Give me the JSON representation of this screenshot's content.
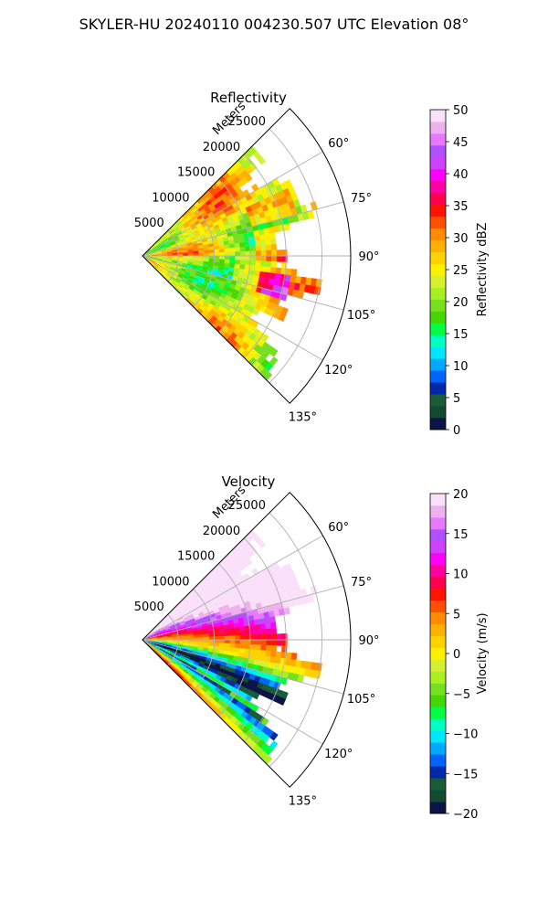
{
  "figure_title": "SKYLER-HU  20240110  004230.507 UTC Elevation 08°",
  "chart_data": [
    {
      "type": "heatmap",
      "projection": "polar-sector",
      "title": "Reflectivity",
      "r_label": "Meters",
      "r_ticks": [
        5000,
        10000,
        15000,
        20000,
        25000
      ],
      "r_tick_labels": [
        "5000",
        "10000",
        "15000",
        "20000",
        "25000"
      ],
      "r_max": 29000,
      "theta_range_deg": [
        45,
        135
      ],
      "theta_ticks": [
        60,
        75,
        90,
        105,
        120,
        135
      ],
      "theta_tick_labels": [
        "60°",
        "75°",
        "90°",
        "105°",
        "120°",
        "135°"
      ],
      "grid": true,
      "colorbar": {
        "label": "Reflectivity dBZ",
        "min": 0,
        "max": 50,
        "ticks": [
          0,
          5,
          10,
          15,
          20,
          25,
          30,
          35,
          40,
          45,
          50
        ],
        "tick_labels": [
          "0",
          "5",
          "10",
          "15",
          "20",
          "25",
          "30",
          "35",
          "40",
          "45",
          "50"
        ],
        "colors": [
          "#0a1445",
          "#134a33",
          "#1a5c3a",
          "#0028a8",
          "#0064ff",
          "#00a8ff",
          "#00e6ff",
          "#00ffc0",
          "#00ff40",
          "#44d800",
          "#76e020",
          "#a8f020",
          "#d6f030",
          "#fff000",
          "#ffd200",
          "#ffb000",
          "#ff8c00",
          "#ff5000",
          "#ff1400",
          "#ff0050",
          "#ff00a0",
          "#ff00ff",
          "#d040ff",
          "#b050ff",
          "#e878ff",
          "#f0b0f0",
          "#fae0fa"
        ]
      }
    },
    {
      "type": "heatmap",
      "projection": "polar-sector",
      "title": "Velocity",
      "r_label": "Meters",
      "r_ticks": [
        5000,
        10000,
        15000,
        20000,
        25000
      ],
      "r_tick_labels": [
        "5000",
        "10000",
        "15000",
        "20000",
        "25000"
      ],
      "r_max": 29000,
      "theta_range_deg": [
        45,
        135
      ],
      "theta_ticks": [
        60,
        75,
        90,
        105,
        120,
        135
      ],
      "theta_tick_labels": [
        "60°",
        "75°",
        "90°",
        "105°",
        "120°",
        "135°"
      ],
      "grid": true,
      "colorbar": {
        "label": "Velocity (m/s)",
        "min": -20,
        "max": 20,
        "ticks": [
          -20,
          -15,
          -10,
          -5,
          0,
          5,
          10,
          15,
          20
        ],
        "tick_labels": [
          "−20",
          "−15",
          "−10",
          "−5",
          "0",
          "5",
          "10",
          "15",
          "20"
        ],
        "colors": [
          "#0a1445",
          "#134a33",
          "#1a5c3a",
          "#0028a8",
          "#0064ff",
          "#00a8ff",
          "#00e6ff",
          "#00ffc0",
          "#00ff40",
          "#44d800",
          "#76e020",
          "#a8f020",
          "#d6f030",
          "#fff000",
          "#ffd200",
          "#ffb000",
          "#ff8c00",
          "#ff5000",
          "#ff1400",
          "#ff0050",
          "#ff00a0",
          "#ff00ff",
          "#d040ff",
          "#b050ff",
          "#e878ff",
          "#f0b0f0",
          "#fae0fa"
        ]
      }
    }
  ]
}
